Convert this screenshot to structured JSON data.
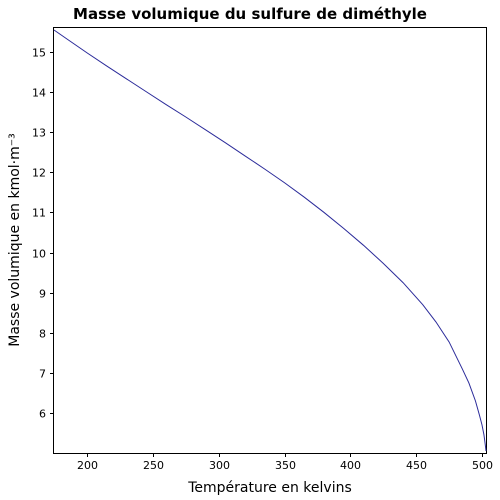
{
  "chart_data": {
    "type": "line",
    "title": "Masse volumique du sulfure de diméthyle",
    "xlabel": "Température en kelvins",
    "ylabel": "Masse volumique en kmol·m⁻³",
    "xlim": [
      174.88,
      503.04
    ],
    "ylim": [
      5.0,
      15.6
    ],
    "xticks": [
      200,
      250,
      300,
      350,
      400,
      450,
      500
    ],
    "yticks": [
      6,
      7,
      8,
      9,
      10,
      11,
      12,
      13,
      14,
      15
    ],
    "grid": false,
    "series": [
      {
        "color": "#2b2b9a",
        "x": [
          174.88,
          185,
          200,
          215,
          230,
          245,
          260,
          275,
          290,
          305,
          320,
          335,
          350,
          365,
          380,
          395,
          410,
          425,
          440,
          455,
          465,
          475,
          485,
          490,
          495,
          498,
          500,
          501.5,
          502.5,
          503.04
        ],
        "y": [
          15.55,
          15.32,
          14.98,
          14.65,
          14.33,
          14.01,
          13.69,
          13.38,
          13.06,
          12.74,
          12.41,
          12.08,
          11.74,
          11.38,
          11.0,
          10.6,
          10.18,
          9.73,
          9.25,
          8.7,
          8.27,
          7.77,
          7.1,
          6.75,
          6.3,
          5.95,
          5.7,
          5.45,
          5.2,
          5.05
        ]
      }
    ]
  }
}
